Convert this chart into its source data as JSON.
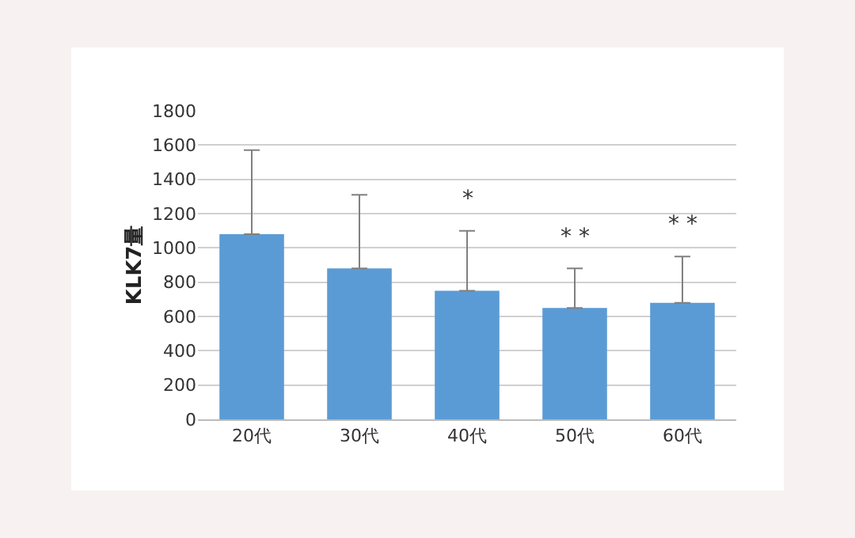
{
  "chart_data": {
    "type": "bar",
    "ylabel": "KLK7量",
    "categories": [
      "20代",
      "30代",
      "40代",
      "50代",
      "60代"
    ],
    "values": [
      1080,
      880,
      750,
      650,
      680
    ],
    "errors": [
      [
        1080,
        1570
      ],
      [
        880,
        1310
      ],
      [
        750,
        1100
      ],
      [
        650,
        880
      ],
      [
        680,
        950
      ]
    ],
    "color": "#5b9bd5",
    "ylim": [
      0,
      1800
    ],
    "yticks": [
      0,
      200,
      400,
      600,
      800,
      1000,
      1200,
      1400,
      1600,
      1800
    ],
    "grid": "y",
    "annotations": [
      {
        "text": "*",
        "x": "40代",
        "y": 1100
      },
      {
        "text": "* *",
        "x": "50代",
        "y": 880
      },
      {
        "text": "* *",
        "x": "60代",
        "y": 950
      }
    ]
  }
}
